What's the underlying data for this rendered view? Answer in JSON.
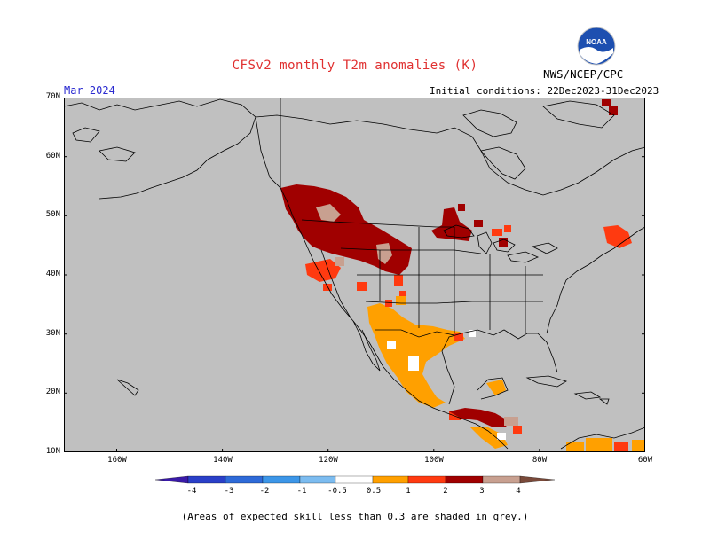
{
  "header": {
    "title": "CFSv2 monthly T2m anomalies (K)",
    "agency": "NWS/NCEP/CPC",
    "logo_text": "NOAA",
    "valid_month": "Mar 2024",
    "initial_conditions": "Initial conditions: 22Dec2023-31Dec2023"
  },
  "axes": {
    "lat_labels": [
      "70N",
      "60N",
      "50N",
      "40N",
      "30N",
      "20N",
      "10N"
    ],
    "lon_labels": [
      "160W",
      "140W",
      "120W",
      "100W",
      "80W",
      "60W"
    ]
  },
  "colorbar": {
    "tick_labels": [
      "-4",
      "-3",
      "-2",
      "-1",
      "-0.5",
      "0.5",
      "1",
      "2",
      "3",
      "4"
    ],
    "colors": {
      "lt_-4": "#3a1aa8",
      "-4_-3": "#2a3fc8",
      "-3_-2": "#2e6ad8",
      "-2_-1": "#3c96e8",
      "-1_-0.5": "#7cbcf0",
      "-0.5_0.5": "#ffffff",
      "0.5_1": "#ffa000",
      "1_2": "#ff3a10",
      "2_3": "#a00000",
      "3_4": "#c8a090",
      "gt_4": "#7a4a3a"
    }
  },
  "map_colors": {
    "low_skill_grey": "#c0c0c0",
    "coastline": "#000000"
  },
  "footnote": "(Areas of expected skill less than 0.3 are shaded in grey.)"
}
